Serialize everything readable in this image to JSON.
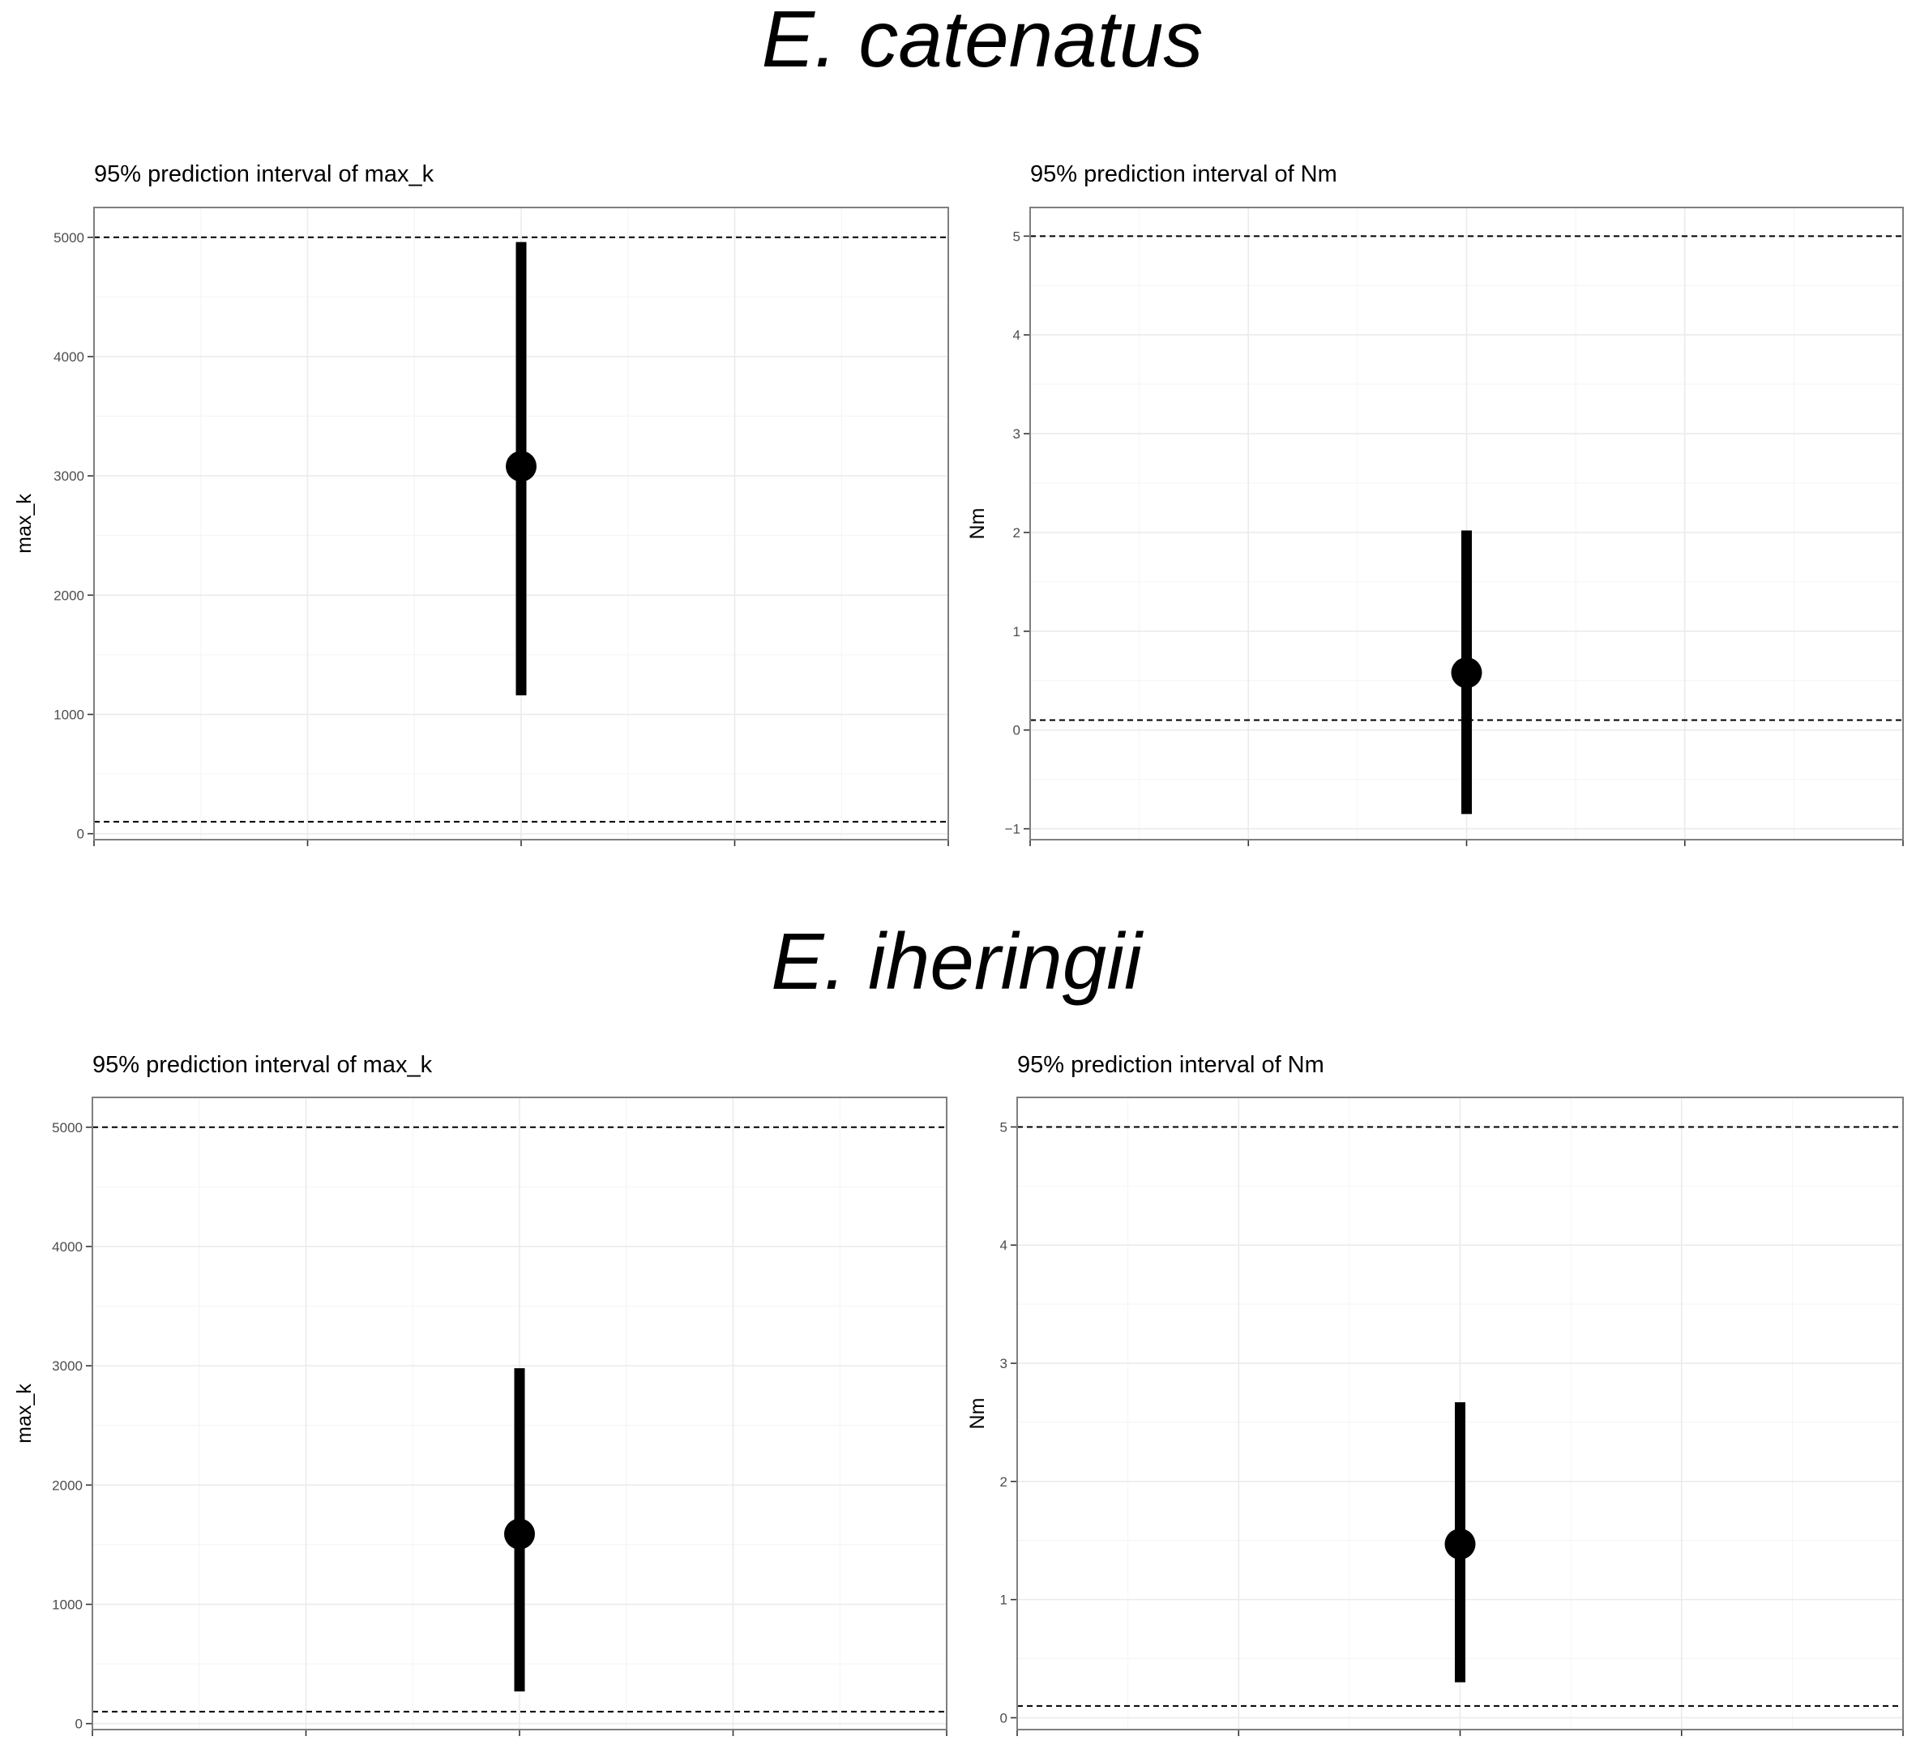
{
  "chart_data": [
    {
      "type": "pointrange",
      "group": "E. catenatus",
      "title": "95% prediction interval of max_k",
      "xlabel": "",
      "ylabel": "max_k",
      "ylim": [
        -50,
        5250
      ],
      "yticks": [
        0,
        1000,
        2000,
        3000,
        4000,
        5000
      ],
      "grid": true,
      "points": [
        {
          "x": 0,
          "y": 3080,
          "ymin": 1160,
          "ymax": 4960
        }
      ],
      "reference_lines": [
        100,
        5000
      ]
    },
    {
      "type": "pointrange",
      "group": "E. catenatus",
      "title": "95% prediction interval of Nm",
      "xlabel": "",
      "ylabel": "Nm",
      "ylim": [
        -1.11,
        5.29
      ],
      "yticks": [
        -1,
        0,
        1,
        2,
        3,
        4,
        5
      ],
      "grid": true,
      "points": [
        {
          "x": 0,
          "y": 0.58,
          "ymin": -0.85,
          "ymax": 2.02
        }
      ],
      "reference_lines": [
        0.1,
        5
      ]
    },
    {
      "type": "pointrange",
      "group": "E. iheringii",
      "title": "95% prediction interval of max_k",
      "xlabel": "",
      "ylabel": "max_k",
      "ylim": [
        -50,
        5250
      ],
      "yticks": [
        0,
        1000,
        2000,
        3000,
        4000,
        5000
      ],
      "grid": true,
      "points": [
        {
          "x": 0,
          "y": 1590,
          "ymin": 270,
          "ymax": 2980
        }
      ],
      "reference_lines": [
        100,
        5000
      ]
    },
    {
      "type": "pointrange",
      "group": "E. iheringii",
      "title": "95% prediction interval of Nm",
      "xlabel": "",
      "ylabel": "Nm",
      "ylim": [
        -0.1,
        5.25
      ],
      "yticks": [
        0,
        1,
        2,
        3,
        4,
        5
      ],
      "grid": true,
      "points": [
        {
          "x": 0,
          "y": 1.47,
          "ymin": 0.3,
          "ymax": 2.67
        }
      ],
      "reference_lines": [
        0.1,
        5
      ]
    }
  ],
  "groups": [
    {
      "label": "E. catenatus"
    },
    {
      "label": "E. iheringii"
    }
  ],
  "colors": {
    "mark": "#000000",
    "grid": "#ebebeb",
    "frame": "#7f7f7f",
    "dashed": "#000000"
  }
}
